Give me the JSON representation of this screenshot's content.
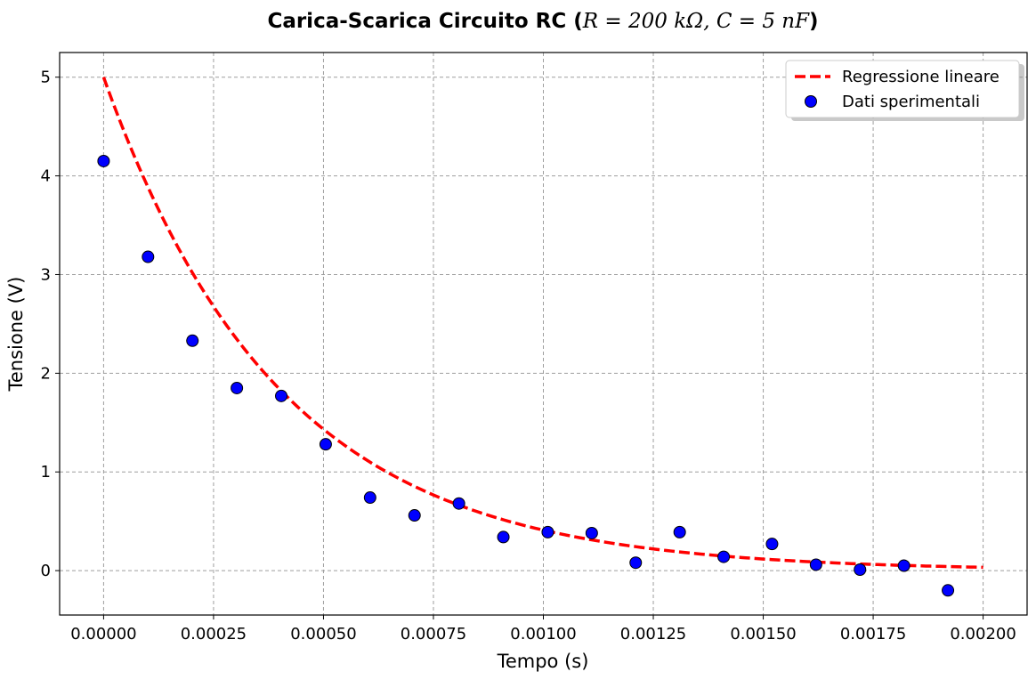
{
  "chart_data": {
    "type": "scatter",
    "title_text": "Carica-Scarica Circuito RC (",
    "title_math": "R = 200 kΩ, C = 5 nF",
    "title_close": ")",
    "xlabel": "Tempo (s)",
    "ylabel": "Tensione (V)",
    "xlim": [
      -0.0001,
      0.0021
    ],
    "ylim": [
      -0.45,
      5.25
    ],
    "xticks": [
      0.0,
      0.00025,
      0.0005,
      0.00075,
      0.001,
      0.00125,
      0.0015,
      0.00175,
      0.002
    ],
    "xtick_labels": [
      "0.00000",
      "0.00025",
      "0.00050",
      "0.00075",
      "0.00100",
      "0.00125",
      "0.00150",
      "0.00175",
      "0.00200"
    ],
    "yticks": [
      0,
      1,
      2,
      3,
      4,
      5
    ],
    "ytick_labels": [
      "0",
      "1",
      "2",
      "3",
      "4",
      "5"
    ],
    "grid": true,
    "legend_position": "top-right",
    "series": [
      {
        "name": "Regressione lineare",
        "kind": "line",
        "style": "dashed",
        "color": "#ff0000",
        "model": "exponential_decay",
        "V0": 5.0,
        "tau": 0.0004,
        "x_start": 0.0,
        "x_end": 0.002
      },
      {
        "name": "Dati sperimentali",
        "kind": "scatter",
        "color": "#0000ff",
        "edge_color": "#000000",
        "x": [
          0.0,
          0.000101,
          0.000202,
          0.000303,
          0.000404,
          0.000505,
          0.000606,
          0.000707,
          0.000808,
          0.000909,
          0.00101,
          0.00111,
          0.00121,
          0.00131,
          0.00141,
          0.00152,
          0.00162,
          0.00172,
          0.00182,
          0.00192
        ],
        "y": [
          4.15,
          3.18,
          2.33,
          1.85,
          1.77,
          1.28,
          0.74,
          0.56,
          0.68,
          0.34,
          0.39,
          0.38,
          0.08,
          0.39,
          0.14,
          0.27,
          0.06,
          0.01,
          0.05,
          -0.2
        ]
      }
    ]
  }
}
